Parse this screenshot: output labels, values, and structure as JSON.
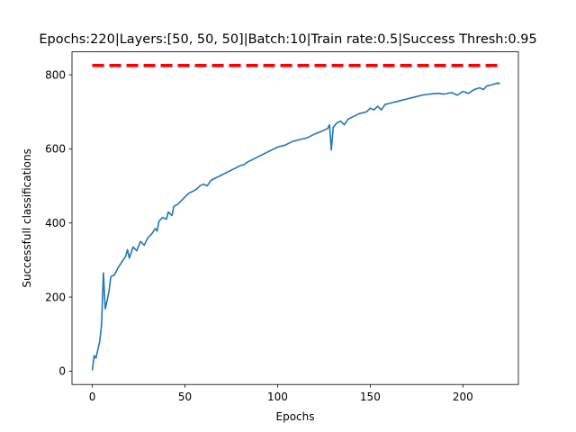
{
  "chart_data": {
    "type": "line",
    "title": "Epochs:220|Layers:[50, 50, 50]|Batch:10|Train rate:0.5|Success Thresh:0.95",
    "xlabel": "Epochs",
    "ylabel": "Successfull classifications",
    "xlim": [
      -10.95,
      229.95
    ],
    "ylim": [
      -36,
      862
    ],
    "x_ticks": [
      0,
      50,
      100,
      150,
      200
    ],
    "y_ticks": [
      0,
      200,
      400,
      600,
      800
    ],
    "grid": false,
    "legend": "none",
    "series": [
      {
        "style": "solid",
        "color": "#1f77b4",
        "points": [
          [
            0,
            2
          ],
          [
            1,
            42
          ],
          [
            2,
            35
          ],
          [
            3,
            58
          ],
          [
            4,
            80
          ],
          [
            5,
            125
          ],
          [
            6,
            265
          ],
          [
            7,
            168
          ],
          [
            8,
            190
          ],
          [
            9,
            215
          ],
          [
            10,
            255
          ],
          [
            12,
            260
          ],
          [
            14,
            280
          ],
          [
            16,
            295
          ],
          [
            18,
            310
          ],
          [
            19,
            328
          ],
          [
            20,
            305
          ],
          [
            22,
            335
          ],
          [
            24,
            325
          ],
          [
            26,
            350
          ],
          [
            28,
            340
          ],
          [
            30,
            360
          ],
          [
            32,
            370
          ],
          [
            34,
            385
          ],
          [
            35,
            378
          ],
          [
            36,
            405
          ],
          [
            38,
            415
          ],
          [
            40,
            410
          ],
          [
            41,
            430
          ],
          [
            43,
            420
          ],
          [
            44,
            445
          ],
          [
            46,
            450
          ],
          [
            48,
            460
          ],
          [
            50,
            470
          ],
          [
            52,
            480
          ],
          [
            54,
            485
          ],
          [
            56,
            490
          ],
          [
            58,
            500
          ],
          [
            60,
            505
          ],
          [
            62,
            500
          ],
          [
            64,
            515
          ],
          [
            66,
            520
          ],
          [
            68,
            525
          ],
          [
            70,
            530
          ],
          [
            72,
            535
          ],
          [
            74,
            540
          ],
          [
            76,
            545
          ],
          [
            78,
            550
          ],
          [
            80,
            555
          ],
          [
            82,
            558
          ],
          [
            84,
            565
          ],
          [
            86,
            570
          ],
          [
            88,
            575
          ],
          [
            90,
            580
          ],
          [
            92,
            585
          ],
          [
            94,
            590
          ],
          [
            96,
            595
          ],
          [
            98,
            600
          ],
          [
            100,
            605
          ],
          [
            104,
            610
          ],
          [
            108,
            620
          ],
          [
            112,
            625
          ],
          [
            116,
            630
          ],
          [
            120,
            640
          ],
          [
            124,
            648
          ],
          [
            127,
            655
          ],
          [
            128,
            665
          ],
          [
            129,
            597
          ],
          [
            130,
            658
          ],
          [
            132,
            670
          ],
          [
            134,
            675
          ],
          [
            136,
            665
          ],
          [
            138,
            680
          ],
          [
            140,
            685
          ],
          [
            144,
            695
          ],
          [
            148,
            700
          ],
          [
            150,
            710
          ],
          [
            152,
            705
          ],
          [
            154,
            715
          ],
          [
            156,
            705
          ],
          [
            158,
            720
          ],
          [
            162,
            725
          ],
          [
            166,
            730
          ],
          [
            170,
            735
          ],
          [
            174,
            740
          ],
          [
            178,
            745
          ],
          [
            182,
            748
          ],
          [
            186,
            750
          ],
          [
            190,
            748
          ],
          [
            194,
            752
          ],
          [
            197,
            745
          ],
          [
            200,
            755
          ],
          [
            203,
            750
          ],
          [
            206,
            760
          ],
          [
            209,
            765
          ],
          [
            211,
            760
          ],
          [
            213,
            770
          ],
          [
            215,
            772
          ],
          [
            217,
            775
          ],
          [
            219,
            778
          ],
          [
            220,
            775
          ]
        ]
      },
      {
        "style": "dashed",
        "color": "#ff0000",
        "points": [
          [
            0,
            825
          ],
          [
            220,
            825
          ]
        ]
      }
    ]
  }
}
